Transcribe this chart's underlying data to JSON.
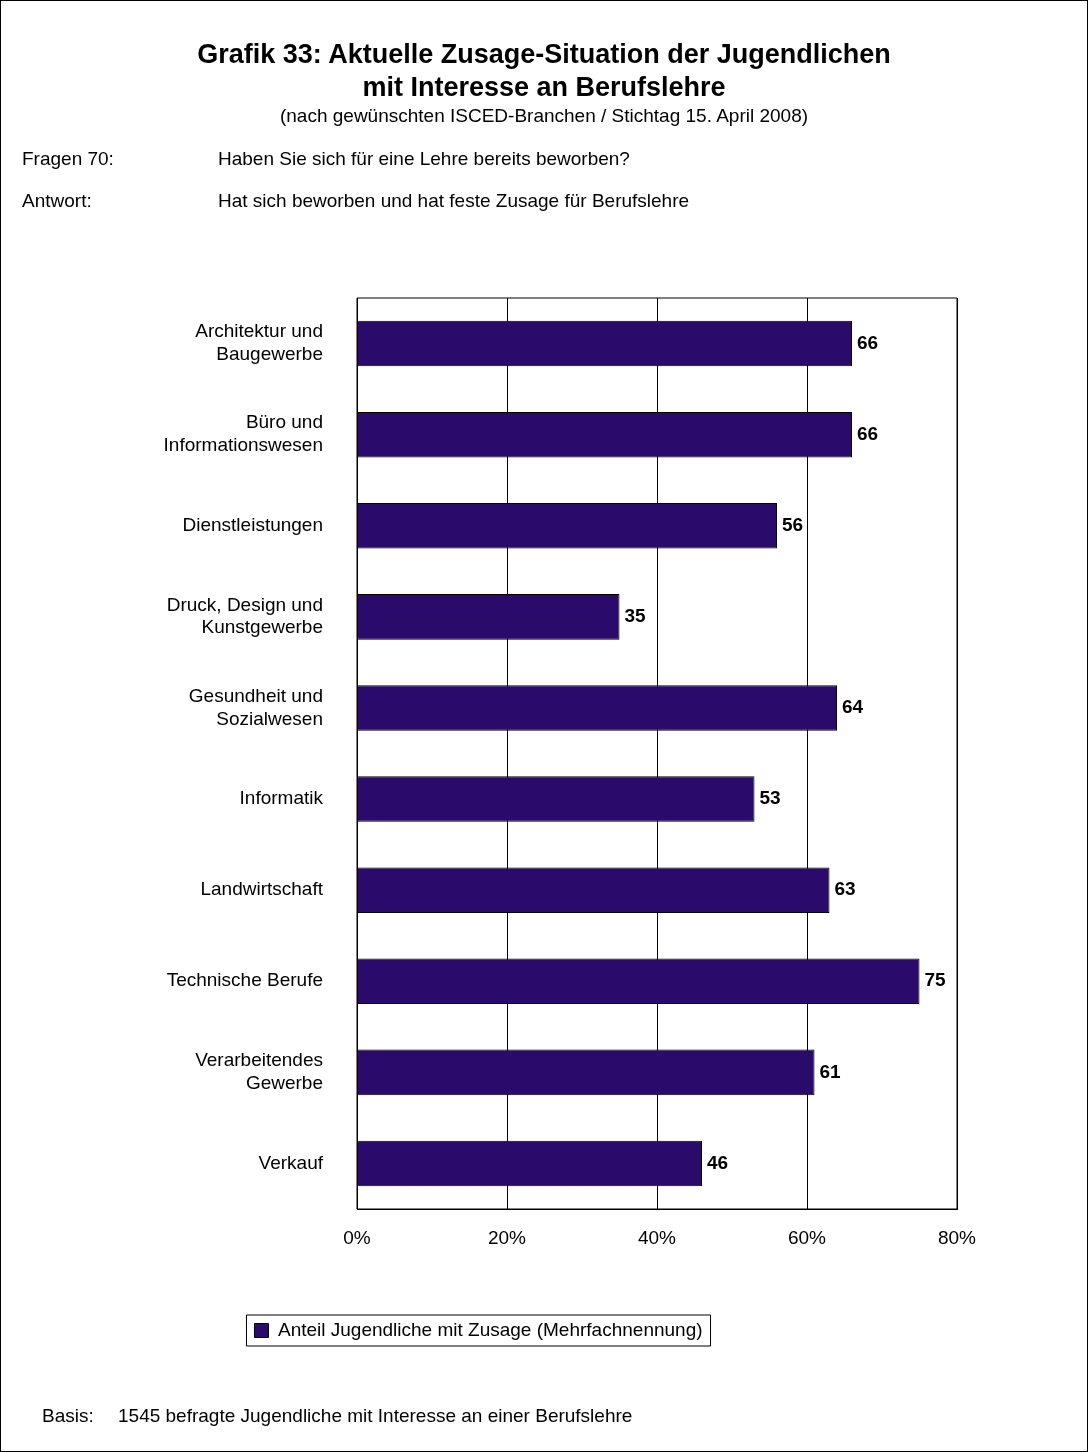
{
  "chart_data": {
    "type": "bar",
    "orientation": "horizontal",
    "title": "Grafik 33: Aktuelle Zusage-Situation der Jugendlichen\nmit Interesse an Berufslehre",
    "subtitle": "(nach gewünschten ISCED-Branchen / Stichtag 15. April 2008)",
    "annotations": [
      "Fragen 70:",
      "Haben Sie sich für eine Lehre bereits beworben?",
      "Antwort:",
      "Hat sich beworben und hat feste Zusage für Berufslehre",
      "Basis:",
      "1545 befragte Jugendliche mit Interesse an einer Berufslehre"
    ],
    "categories": [
      "Architektur und\nBaugewerbe",
      "Büro und\nInformationswesen",
      "Dienstleistungen",
      "Druck, Design und\nKunstgewerbe",
      "Gesundheit und\nSozialwesen",
      "Informatik",
      "Landwirtschaft",
      "Technische Berufe",
      "Verarbeitendes\nGewerbe",
      "Verkauf"
    ],
    "series": [
      {
        "name": "Anteil Jugendliche mit Zusage (Mehrfachnennung)",
        "color": "#2a0a6b",
        "values": [
          66,
          66,
          56,
          35,
          64,
          53,
          63,
          75,
          61,
          46
        ]
      }
    ],
    "xlim": [
      0,
      80
    ],
    "xticks": [
      {
        "value": 0,
        "label": "0%"
      },
      {
        "value": 20,
        "label": "20%"
      },
      {
        "value": 40,
        "label": "40%"
      },
      {
        "value": 60,
        "label": "60%"
      },
      {
        "value": 80,
        "label": "80%"
      }
    ],
    "grid": "x",
    "legend": "bottom",
    "data_labels": true
  }
}
